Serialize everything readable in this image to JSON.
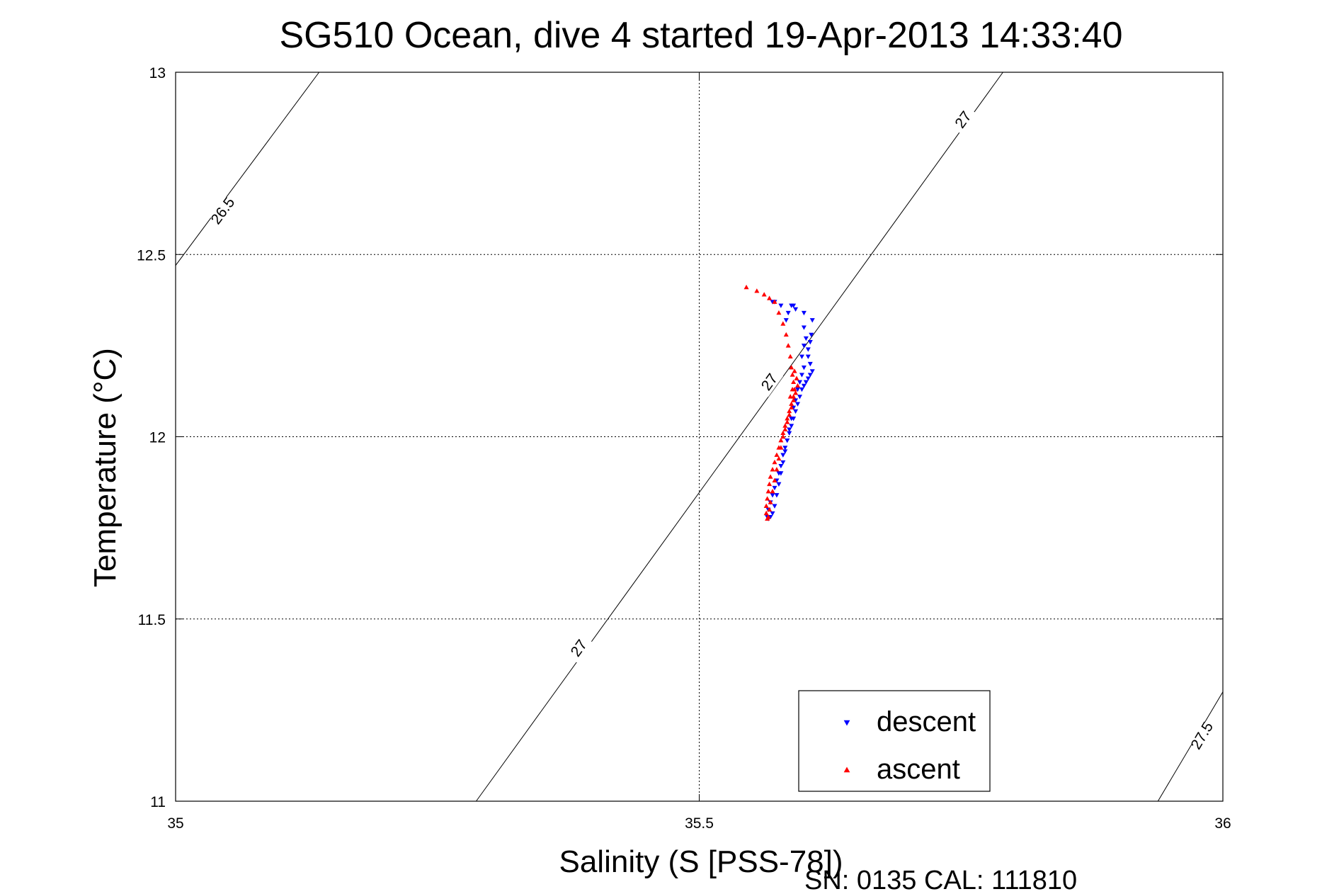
{
  "chart_data": {
    "type": "scatter",
    "title": "SG510 Ocean, dive 4 started 19-Apr-2013 14:33:40",
    "xlabel": "Salinity (S [PSS-78])",
    "ylabel": "Temperature (°C)",
    "xlim": [
      35,
      36
    ],
    "ylim": [
      11,
      13
    ],
    "xticks": [
      "35",
      "35.5",
      "36"
    ],
    "yticks": [
      "11",
      "11.5",
      "12",
      "12.5",
      "13"
    ],
    "grid": true,
    "legend_position": "bottom-right",
    "footer": "SN: 0135  CAL: 111810",
    "density_contours": [
      {
        "label": "26.5",
        "points": [
          [
            35.0,
            12.47
          ],
          [
            35.137,
            13.0
          ]
        ],
        "label_at": [
          35.045,
          12.62
        ]
      },
      {
        "label": "27",
        "points": [
          [
            35.287,
            11.0
          ],
          [
            35.79,
            13.0
          ]
        ],
        "label_at": [
          35.385,
          11.42
        ]
      },
      {
        "label": "27",
        "points": [
          [
            35.287,
            11.0
          ],
          [
            35.79,
            13.0
          ]
        ],
        "label_at": [
          35.567,
          12.15
        ]
      },
      {
        "label": "27",
        "points": [
          [
            35.287,
            11.0
          ],
          [
            35.79,
            13.0
          ]
        ],
        "label_at": [
          35.752,
          12.87
        ]
      },
      {
        "label": "27.5",
        "points": [
          [
            35.938,
            11.0
          ],
          [
            36.0,
            11.3
          ]
        ],
        "label_at": [
          35.98,
          11.18
        ]
      }
    ],
    "series": [
      {
        "name": "descent",
        "color": "#0000ff",
        "marker": "triangle-down",
        "x": [
          35.57,
          35.572,
          35.578,
          35.588,
          35.59,
          35.585,
          35.583,
          35.592,
          35.6,
          35.602,
          35.6,
          35.598,
          35.6,
          35.598,
          35.596,
          35.594,
          35.592,
          35.59,
          35.588,
          35.586,
          35.584,
          35.582,
          35.58,
          35.578,
          35.576,
          35.574,
          35.572,
          35.57,
          35.568,
          35.566,
          35.565,
          35.566,
          35.568,
          35.57,
          35.572,
          35.574,
          35.576,
          35.578,
          35.58,
          35.582,
          35.584,
          35.586,
          35.588,
          35.59,
          35.592,
          35.594,
          35.596,
          35.598,
          35.6,
          35.602,
          35.604,
          35.606,
          35.608,
          35.606,
          35.604,
          35.604,
          35.606,
          35.607,
          35.608,
          35.6
        ],
        "y": [
          12.37,
          12.37,
          12.36,
          12.36,
          12.36,
          12.34,
          12.32,
          12.35,
          12.3,
          12.27,
          12.25,
          12.22,
          12.19,
          12.17,
          12.15,
          12.13,
          12.1,
          12.08,
          12.05,
          12.02,
          11.99,
          11.96,
          11.93,
          11.9,
          11.87,
          11.84,
          11.81,
          11.79,
          11.78,
          11.775,
          11.78,
          11.8,
          11.82,
          11.84,
          11.86,
          11.88,
          11.9,
          11.92,
          11.95,
          11.97,
          11.99,
          12.01,
          12.03,
          12.05,
          12.07,
          12.09,
          12.11,
          12.13,
          12.14,
          12.15,
          12.16,
          12.17,
          12.18,
          12.2,
          12.22,
          12.24,
          12.26,
          12.28,
          12.32,
          12.34
        ]
      },
      {
        "name": "ascent",
        "color": "#ff0000",
        "marker": "triangle-up",
        "x": [
          35.545,
          35.555,
          35.562,
          35.567,
          35.572,
          35.576,
          35.58,
          35.583,
          35.585,
          35.587,
          35.588,
          35.589,
          35.59,
          35.591,
          35.59,
          35.588,
          35.586,
          35.584,
          35.582,
          35.58,
          35.578,
          35.576,
          35.574,
          35.572,
          35.57,
          35.568,
          35.567,
          35.566,
          35.565,
          35.564,
          35.564,
          35.565,
          35.566,
          35.567,
          35.568,
          35.57,
          35.572,
          35.574,
          35.576,
          35.578,
          35.58,
          35.582,
          35.584,
          35.586,
          35.588,
          35.59,
          35.592,
          35.594,
          35.593,
          35.591,
          35.589,
          35.587
        ],
        "y": [
          12.41,
          12.4,
          12.39,
          12.38,
          12.37,
          12.34,
          12.31,
          12.28,
          12.25,
          12.22,
          12.19,
          12.17,
          12.15,
          12.13,
          12.11,
          12.09,
          12.07,
          12.05,
          12.03,
          12.01,
          11.99,
          11.97,
          11.95,
          11.93,
          11.91,
          11.89,
          11.87,
          11.85,
          11.83,
          11.81,
          11.79,
          11.775,
          11.78,
          11.8,
          11.82,
          11.85,
          11.88,
          11.91,
          11.94,
          11.97,
          12.0,
          12.02,
          12.04,
          12.06,
          12.08,
          12.1,
          12.12,
          12.14,
          12.16,
          12.18,
          12.13,
          12.11
        ]
      }
    ]
  }
}
